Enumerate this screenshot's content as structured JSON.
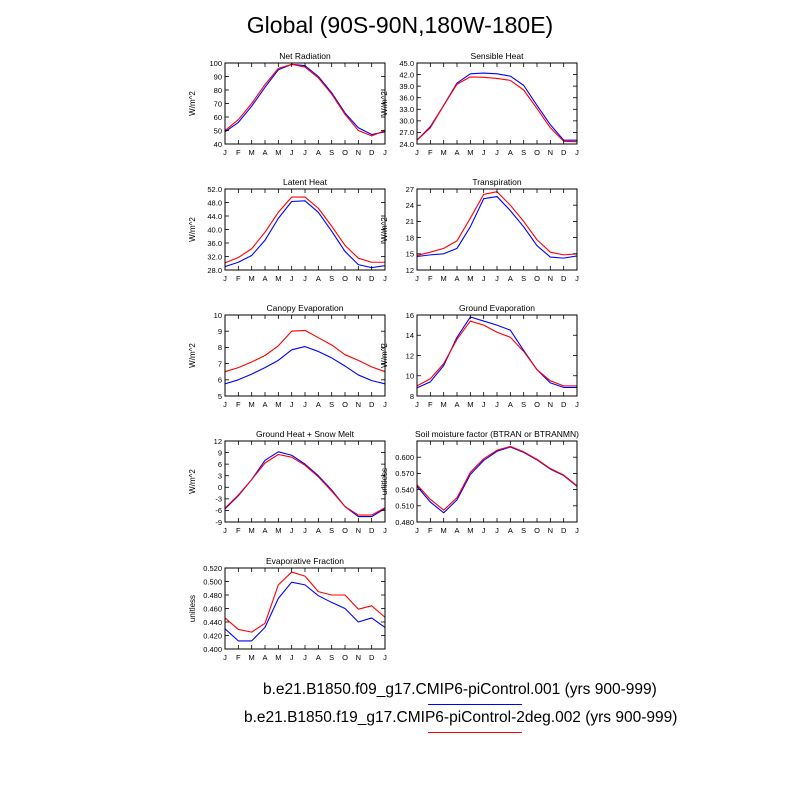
{
  "title": "Global (90S-90N,180W-180E)",
  "colors": {
    "series1": "#0000ff",
    "series2": "#ff0000",
    "axis": "#000000"
  },
  "legend": [
    {
      "label": "b.e21.B1850.f09_g17.CMIP6-piControl.001 (yrs 900-999)",
      "color": "#0000ff"
    },
    {
      "label": "b.e21.B1850.f19_g17.CMIP6-piControl-2deg.002 (yrs 900-999)",
      "color": "#ff0000"
    }
  ],
  "chart_data": [
    {
      "type": "line",
      "title": "Net Radiation",
      "ylabel": "W/m^2",
      "categories": [
        "J",
        "F",
        "M",
        "A",
        "M",
        "J",
        "J",
        "A",
        "S",
        "O",
        "N",
        "D",
        "J"
      ],
      "ylim": [
        40,
        100
      ],
      "yticks": [
        "40",
        "50",
        "60",
        "70",
        "80",
        "90",
        "100"
      ],
      "series": [
        {
          "name": "b.e21.B1850.f09_g17.CMIP6-piControl.001",
          "values": [
            49,
            56,
            68,
            82,
            95,
            99,
            98,
            90,
            78,
            63,
            52,
            47,
            49
          ]
        },
        {
          "name": "b.e21.B1850.f19_g17.CMIP6-piControl-2deg.002",
          "values": [
            50,
            58,
            70,
            84,
            96,
            99,
            97,
            89,
            77,
            62,
            50,
            46,
            50
          ]
        }
      ]
    },
    {
      "type": "line",
      "title": "Sensible Heat",
      "ylabel": "W/m^2",
      "categories": [
        "J",
        "F",
        "M",
        "A",
        "M",
        "J",
        "J",
        "A",
        "S",
        "O",
        "N",
        "D",
        "J"
      ],
      "ylim": [
        24,
        45
      ],
      "yticks": [
        "24.0",
        "27.0",
        "30.0",
        "33.0",
        "36.0",
        "39.0",
        "42.0",
        "45.0"
      ],
      "series": [
        {
          "name": "b.e21.B1850.f09_g17.CMIP6-piControl.001",
          "values": [
            25,
            28.5,
            34,
            39.8,
            42.2,
            42.4,
            42.2,
            41.6,
            39.2,
            34,
            29,
            25,
            25
          ]
        },
        {
          "name": "b.e21.B1850.f19_g17.CMIP6-piControl-2deg.002",
          "values": [
            25,
            28.2,
            34,
            39.5,
            41.4,
            41.3,
            41,
            40.5,
            38,
            33.2,
            28.2,
            24.7,
            24.6
          ]
        }
      ]
    },
    {
      "type": "line",
      "title": "Latent Heat",
      "ylabel": "W/m^2",
      "categories": [
        "J",
        "F",
        "M",
        "A",
        "M",
        "J",
        "J",
        "A",
        "S",
        "O",
        "N",
        "D",
        "J"
      ],
      "ylim": [
        28,
        52
      ],
      "yticks": [
        "28.0",
        "32.0",
        "36.0",
        "40.0",
        "44.0",
        "48.0",
        "52.0"
      ],
      "series": [
        {
          "name": "b.e21.B1850.f09_g17.CMIP6-piControl.001",
          "values": [
            29,
            30.3,
            32.3,
            36.8,
            43.3,
            48.3,
            48.5,
            45.1,
            39.5,
            33.5,
            29.6,
            28.7,
            29.3
          ]
        },
        {
          "name": "b.e21.B1850.f19_g17.CMIP6-piControl-2deg.002",
          "values": [
            30.1,
            31.7,
            34.3,
            39.2,
            45.1,
            49.6,
            49.6,
            46.3,
            41,
            35.3,
            31.5,
            30.3,
            30.3
          ]
        }
      ]
    },
    {
      "type": "line",
      "title": "Transpiration",
      "ylabel": "W/m^2",
      "categories": [
        "J",
        "F",
        "M",
        "A",
        "M",
        "J",
        "J",
        "A",
        "S",
        "O",
        "N",
        "D",
        "J"
      ],
      "ylim": [
        12,
        27
      ],
      "yticks": [
        "12",
        "15",
        "18",
        "21",
        "24",
        "27"
      ],
      "series": [
        {
          "name": "b.e21.B1850.f09_g17.CMIP6-piControl.001",
          "values": [
            14.5,
            14.8,
            15,
            16,
            20,
            25.2,
            25.6,
            23,
            20,
            16.5,
            14.4,
            14.2,
            14.6
          ]
        },
        {
          "name": "b.e21.B1850.f19_g17.CMIP6-piControl-2deg.002",
          "values": [
            14.7,
            15.3,
            16,
            17.4,
            21.6,
            26,
            26.5,
            24,
            21,
            17.6,
            15.3,
            14.8,
            15
          ]
        }
      ]
    },
    {
      "type": "line",
      "title": "Canopy Evaporation",
      "ylabel": "W/m^2",
      "categories": [
        "J",
        "F",
        "M",
        "A",
        "M",
        "J",
        "J",
        "A",
        "S",
        "O",
        "N",
        "D",
        "J"
      ],
      "ylim": [
        5,
        10
      ],
      "yticks": [
        "5",
        "6",
        "7",
        "8",
        "9",
        "10"
      ],
      "series": [
        {
          "name": "b.e21.B1850.f09_g17.CMIP6-piControl.001",
          "values": [
            5.75,
            6,
            6.35,
            6.75,
            7.2,
            7.85,
            8.05,
            7.75,
            7.35,
            6.85,
            6.3,
            5.95,
            5.75
          ]
        },
        {
          "name": "b.e21.B1850.f19_g17.CMIP6-piControl-2deg.002",
          "values": [
            6.5,
            6.75,
            7.1,
            7.5,
            8.1,
            9,
            9.05,
            8.6,
            8.15,
            7.55,
            7.2,
            6.8,
            6.5
          ]
        }
      ]
    },
    {
      "type": "line",
      "title": "Ground Evaporation",
      "ylabel": "W/m^2",
      "categories": [
        "J",
        "F",
        "M",
        "A",
        "M",
        "J",
        "J",
        "A",
        "S",
        "O",
        "N",
        "D",
        "J"
      ],
      "ylim": [
        8,
        16
      ],
      "yticks": [
        "8",
        "10",
        "12",
        "14",
        "16"
      ],
      "series": [
        {
          "name": "b.e21.B1850.f09_g17.CMIP6-piControl.001",
          "values": [
            8.8,
            9.4,
            11,
            13.8,
            15.8,
            15.4,
            15,
            14.5,
            12.5,
            10.6,
            9.3,
            8.85,
            8.85
          ]
        },
        {
          "name": "b.e21.B1850.f19_g17.CMIP6-piControl-2deg.002",
          "values": [
            9,
            9.7,
            11.2,
            13.6,
            15.4,
            15,
            14.3,
            13.8,
            12.4,
            10.6,
            9.5,
            9,
            9
          ]
        }
      ]
    },
    {
      "type": "line",
      "title": "Ground Heat + Snow Melt",
      "ylabel": "W/m^2",
      "categories": [
        "J",
        "F",
        "M",
        "A",
        "M",
        "J",
        "J",
        "A",
        "S",
        "O",
        "N",
        "D",
        "J"
      ],
      "ylim": [
        -9,
        12
      ],
      "yticks": [
        "-9",
        "-6",
        "-3",
        "0",
        "3",
        "6",
        "9",
        "12"
      ],
      "series": [
        {
          "name": "b.e21.B1850.f09_g17.CMIP6-piControl.001",
          "values": [
            -5.6,
            -2.2,
            2,
            7,
            9.2,
            8.3,
            6,
            3,
            -0.7,
            -5,
            -7.6,
            -7.6,
            -5.5
          ]
        },
        {
          "name": "b.e21.B1850.f19_g17.CMIP6-piControl-2deg.002",
          "values": [
            -5.4,
            -2,
            2,
            6.3,
            8.5,
            7.8,
            5.7,
            2.7,
            -1,
            -5,
            -7.2,
            -7.2,
            -5.3
          ]
        }
      ]
    },
    {
      "type": "line",
      "title": "Soil moisture factor (BTRAN or BTRANMN)",
      "ylabel": "unitless",
      "categories": [
        "J",
        "F",
        "M",
        "A",
        "M",
        "J",
        "J",
        "A",
        "S",
        "O",
        "N",
        "D",
        "J"
      ],
      "ylim": [
        0.48,
        0.63
      ],
      "yticks": [
        "0.480",
        "0.510",
        "0.540",
        "0.570",
        "0.600"
      ],
      "series": [
        {
          "name": "b.e21.B1850.f09_g17.CMIP6-piControl.001",
          "values": [
            0.546,
            0.517,
            0.497,
            0.521,
            0.568,
            0.594,
            0.611,
            0.619,
            0.609,
            0.595,
            0.578,
            0.566,
            0.546
          ]
        },
        {
          "name": "b.e21.B1850.f19_g17.CMIP6-piControl-2deg.002",
          "values": [
            0.549,
            0.522,
            0.502,
            0.525,
            0.572,
            0.597,
            0.613,
            0.62,
            0.61,
            0.596,
            0.579,
            0.567,
            0.547
          ]
        }
      ]
    },
    {
      "type": "line",
      "title": "Evaporative Fraction",
      "ylabel": "unitless",
      "categories": [
        "J",
        "F",
        "M",
        "A",
        "M",
        "J",
        "J",
        "A",
        "S",
        "O",
        "N",
        "D",
        "J"
      ],
      "ylim": [
        0.4,
        0.52
      ],
      "yticks": [
        "0.400",
        "0.420",
        "0.440",
        "0.460",
        "0.480",
        "0.500",
        "0.520"
      ],
      "series": [
        {
          "name": "b.e21.B1850.f09_g17.CMIP6-piControl.001",
          "values": [
            0.43,
            0.412,
            0.412,
            0.432,
            0.475,
            0.499,
            0.495,
            0.479,
            0.469,
            0.46,
            0.44,
            0.446,
            0.432
          ]
        },
        {
          "name": "b.e21.B1850.f19_g17.CMIP6-piControl-2deg.002",
          "values": [
            0.446,
            0.429,
            0.425,
            0.438,
            0.495,
            0.514,
            0.508,
            0.485,
            0.48,
            0.48,
            0.459,
            0.464,
            0.447
          ]
        }
      ]
    }
  ]
}
